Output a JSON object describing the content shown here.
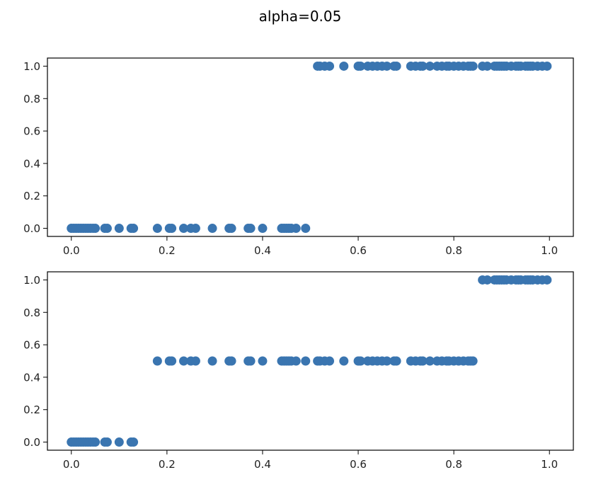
{
  "title": "alpha=0.05",
  "colors": {
    "marker": "#3a75b0"
  },
  "chart_data": [
    {
      "type": "scatter",
      "title": "",
      "xlabel": "",
      "ylabel": "",
      "xlim": [
        -0.05,
        1.05
      ],
      "ylim": [
        -0.05,
        1.05
      ],
      "xticks": [
        "0.0",
        "0.2",
        "0.4",
        "0.6",
        "0.8",
        "1.0"
      ],
      "yticks": [
        "0.0",
        "0.2",
        "0.4",
        "0.6",
        "0.8",
        "1.0"
      ],
      "grid": false,
      "series": [
        {
          "points": [
            [
              0.0,
              0
            ],
            [
              0.005,
              0
            ],
            [
              0.01,
              0
            ],
            [
              0.015,
              0
            ],
            [
              0.02,
              0
            ],
            [
              0.025,
              0
            ],
            [
              0.03,
              0
            ],
            [
              0.035,
              0
            ],
            [
              0.04,
              0
            ],
            [
              0.045,
              0
            ],
            [
              0.05,
              0
            ],
            [
              0.07,
              0
            ],
            [
              0.075,
              0
            ],
            [
              0.1,
              0
            ],
            [
              0.125,
              0
            ],
            [
              0.13,
              0
            ],
            [
              0.18,
              0
            ],
            [
              0.205,
              0
            ],
            [
              0.21,
              0
            ],
            [
              0.235,
              0
            ],
            [
              0.25,
              0
            ],
            [
              0.26,
              0
            ],
            [
              0.295,
              0
            ],
            [
              0.33,
              0
            ],
            [
              0.335,
              0
            ],
            [
              0.37,
              0
            ],
            [
              0.375,
              0
            ],
            [
              0.4,
              0
            ],
            [
              0.44,
              0
            ],
            [
              0.445,
              0
            ],
            [
              0.45,
              0
            ],
            [
              0.455,
              0
            ],
            [
              0.46,
              0
            ],
            [
              0.47,
              0
            ],
            [
              0.49,
              0
            ],
            [
              0.515,
              1
            ],
            [
              0.52,
              1
            ],
            [
              0.53,
              1
            ],
            [
              0.54,
              1
            ],
            [
              0.57,
              1
            ],
            [
              0.6,
              1
            ],
            [
              0.605,
              1
            ],
            [
              0.62,
              1
            ],
            [
              0.63,
              1
            ],
            [
              0.64,
              1
            ],
            [
              0.65,
              1
            ],
            [
              0.66,
              1
            ],
            [
              0.675,
              1
            ],
            [
              0.68,
              1
            ],
            [
              0.71,
              1
            ],
            [
              0.72,
              1
            ],
            [
              0.73,
              1
            ],
            [
              0.735,
              1
            ],
            [
              0.75,
              1
            ],
            [
              0.765,
              1
            ],
            [
              0.775,
              1
            ],
            [
              0.785,
              1
            ],
            [
              0.79,
              1
            ],
            [
              0.8,
              1
            ],
            [
              0.81,
              1
            ],
            [
              0.82,
              1
            ],
            [
              0.83,
              1
            ],
            [
              0.835,
              1
            ],
            [
              0.84,
              1
            ],
            [
              0.86,
              1
            ],
            [
              0.87,
              1
            ],
            [
              0.885,
              1
            ],
            [
              0.89,
              1
            ],
            [
              0.895,
              1
            ],
            [
              0.9,
              1
            ],
            [
              0.905,
              1
            ],
            [
              0.91,
              1
            ],
            [
              0.92,
              1
            ],
            [
              0.93,
              1
            ],
            [
              0.935,
              1
            ],
            [
              0.94,
              1
            ],
            [
              0.95,
              1
            ],
            [
              0.955,
              1
            ],
            [
              0.96,
              1
            ],
            [
              0.965,
              1
            ],
            [
              0.975,
              1
            ],
            [
              0.985,
              1
            ],
            [
              0.995,
              1
            ]
          ]
        }
      ]
    },
    {
      "type": "scatter",
      "title": "",
      "xlabel": "",
      "ylabel": "",
      "xlim": [
        -0.05,
        1.05
      ],
      "ylim": [
        -0.05,
        1.05
      ],
      "xticks": [
        "0.0",
        "0.2",
        "0.4",
        "0.6",
        "0.8",
        "1.0"
      ],
      "yticks": [
        "0.0",
        "0.2",
        "0.4",
        "0.6",
        "0.8",
        "1.0"
      ],
      "grid": false,
      "series": [
        {
          "points": [
            [
              0.0,
              0
            ],
            [
              0.005,
              0
            ],
            [
              0.01,
              0
            ],
            [
              0.015,
              0
            ],
            [
              0.02,
              0
            ],
            [
              0.025,
              0
            ],
            [
              0.03,
              0
            ],
            [
              0.035,
              0
            ],
            [
              0.04,
              0
            ],
            [
              0.045,
              0
            ],
            [
              0.05,
              0
            ],
            [
              0.07,
              0
            ],
            [
              0.075,
              0
            ],
            [
              0.1,
              0
            ],
            [
              0.125,
              0
            ],
            [
              0.13,
              0
            ],
            [
              0.18,
              0.5
            ],
            [
              0.205,
              0.5
            ],
            [
              0.21,
              0.5
            ],
            [
              0.235,
              0.5
            ],
            [
              0.25,
              0.5
            ],
            [
              0.26,
              0.5
            ],
            [
              0.295,
              0.5
            ],
            [
              0.33,
              0.5
            ],
            [
              0.335,
              0.5
            ],
            [
              0.37,
              0.5
            ],
            [
              0.375,
              0.5
            ],
            [
              0.4,
              0.5
            ],
            [
              0.44,
              0.5
            ],
            [
              0.445,
              0.5
            ],
            [
              0.45,
              0.5
            ],
            [
              0.455,
              0.5
            ],
            [
              0.46,
              0.5
            ],
            [
              0.47,
              0.5
            ],
            [
              0.49,
              0.5
            ],
            [
              0.515,
              0.5
            ],
            [
              0.52,
              0.5
            ],
            [
              0.53,
              0.5
            ],
            [
              0.54,
              0.5
            ],
            [
              0.57,
              0.5
            ],
            [
              0.6,
              0.5
            ],
            [
              0.605,
              0.5
            ],
            [
              0.62,
              0.5
            ],
            [
              0.63,
              0.5
            ],
            [
              0.64,
              0.5
            ],
            [
              0.65,
              0.5
            ],
            [
              0.66,
              0.5
            ],
            [
              0.675,
              0.5
            ],
            [
              0.68,
              0.5
            ],
            [
              0.71,
              0.5
            ],
            [
              0.72,
              0.5
            ],
            [
              0.73,
              0.5
            ],
            [
              0.735,
              0.5
            ],
            [
              0.75,
              0.5
            ],
            [
              0.765,
              0.5
            ],
            [
              0.775,
              0.5
            ],
            [
              0.785,
              0.5
            ],
            [
              0.79,
              0.5
            ],
            [
              0.8,
              0.5
            ],
            [
              0.81,
              0.5
            ],
            [
              0.82,
              0.5
            ],
            [
              0.83,
              0.5
            ],
            [
              0.835,
              0.5
            ],
            [
              0.84,
              0.5
            ],
            [
              0.86,
              1
            ],
            [
              0.87,
              1
            ],
            [
              0.885,
              1
            ],
            [
              0.89,
              1
            ],
            [
              0.895,
              1
            ],
            [
              0.9,
              1
            ],
            [
              0.905,
              1
            ],
            [
              0.91,
              1
            ],
            [
              0.92,
              1
            ],
            [
              0.93,
              1
            ],
            [
              0.935,
              1
            ],
            [
              0.94,
              1
            ],
            [
              0.95,
              1
            ],
            [
              0.955,
              1
            ],
            [
              0.96,
              1
            ],
            [
              0.965,
              1
            ],
            [
              0.975,
              1
            ],
            [
              0.985,
              1
            ],
            [
              0.995,
              1
            ]
          ]
        }
      ]
    }
  ]
}
